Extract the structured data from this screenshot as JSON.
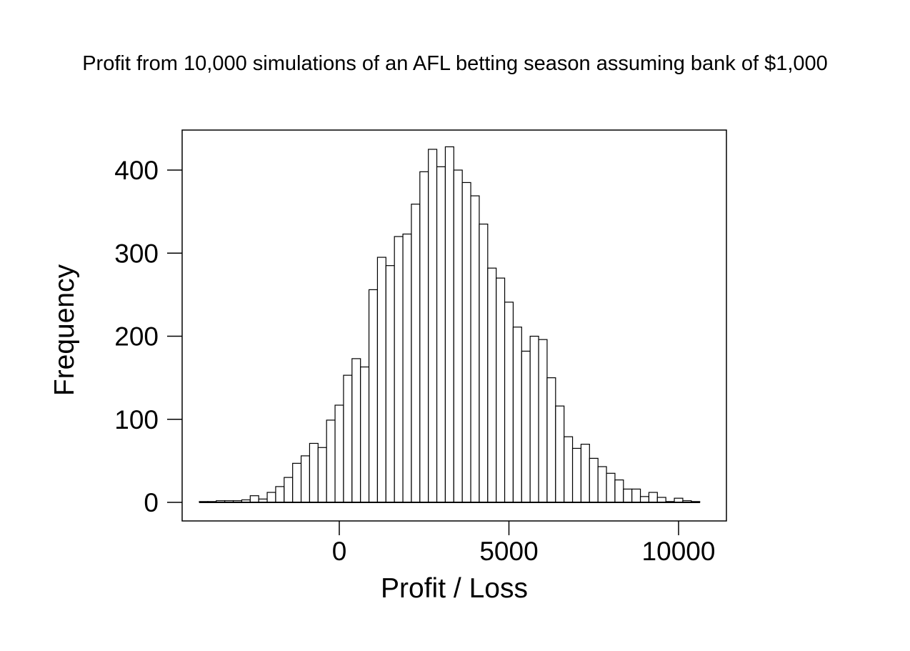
{
  "chart_data": {
    "type": "bar",
    "subtype": "histogram",
    "title": "Profit from 10,000 simulations of an AFL betting season assuming bank of $1,000",
    "xlabel": "Profit / Loss",
    "ylabel": "Frequency",
    "x_tick_values": [
      0,
      5000,
      10000
    ],
    "x_tick_labels": [
      "0",
      "5000",
      "10000"
    ],
    "y_tick_values": [
      0,
      100,
      200,
      300,
      400
    ],
    "y_tick_labels": [
      "0",
      "100",
      "200",
      "300",
      "400"
    ],
    "xlim": [
      -4632,
      11410
    ],
    "ylim": [
      -22,
      448
    ],
    "grid": "off",
    "legend": "none",
    "bin_width": 250,
    "bar_fill": "#ffffff",
    "bar_stroke": "#000000",
    "background": "#ffffff",
    "bin_midpoints": [
      -4000,
      -3750,
      -3500,
      -3250,
      -3000,
      -2750,
      -2500,
      -2250,
      -2000,
      -1750,
      -1500,
      -1250,
      -1000,
      -750,
      -500,
      -250,
      0,
      250,
      500,
      750,
      1000,
      1250,
      1500,
      1750,
      2000,
      2250,
      2500,
      2750,
      3000,
      3250,
      3500,
      3750,
      4000,
      4250,
      4500,
      4750,
      5000,
      5250,
      5500,
      5750,
      6000,
      6250,
      6500,
      6750,
      7000,
      7250,
      7500,
      7750,
      8000,
      8250,
      8500,
      8750,
      9000,
      9250,
      9500,
      9750,
      10000,
      10250,
      10500
    ],
    "frequencies": [
      1,
      1,
      2,
      2,
      2,
      3,
      8,
      4,
      12,
      19,
      30,
      47,
      56,
      71,
      66,
      99,
      117,
      153,
      173,
      163,
      256,
      295,
      285,
      320,
      323,
      359,
      398,
      425,
      404,
      428,
      400,
      385,
      369,
      335,
      282,
      270,
      241,
      211,
      182,
      200,
      196,
      150,
      116,
      79,
      65,
      70,
      53,
      43,
      35,
      27,
      16,
      16,
      7,
      12,
      6,
      1,
      5,
      2,
      1
    ]
  }
}
